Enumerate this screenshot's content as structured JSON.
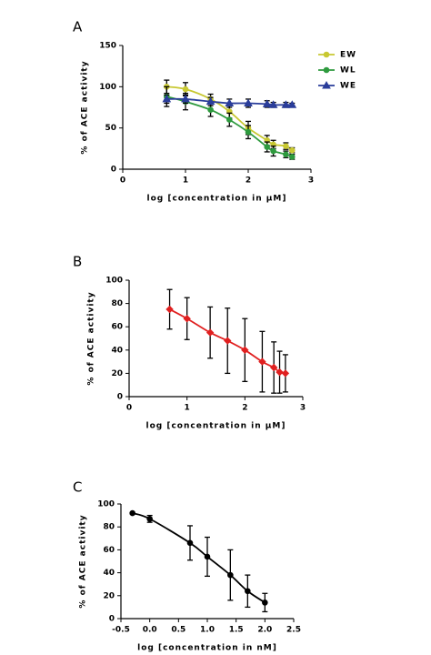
{
  "chart_data": [
    {
      "type": "line",
      "title": "A",
      "ylabel": "% of ACE activity",
      "xlabel": "log [concentration in μM]",
      "x": [
        0.7,
        1.0,
        1.4,
        1.7,
        2.0,
        2.3,
        2.4,
        2.6,
        2.7
      ],
      "series": [
        {
          "name": "EW",
          "color": "#c8c832",
          "marker": "circle",
          "values": [
            100,
            97,
            85,
            70,
            50,
            35,
            30,
            28,
            23
          ],
          "errors": [
            8,
            8,
            6,
            8,
            8,
            6,
            5,
            4,
            3
          ]
        },
        {
          "name": "WL",
          "color": "#2e9a3e",
          "marker": "circle",
          "values": [
            88,
            82,
            72,
            60,
            45,
            27,
            22,
            18,
            15
          ],
          "errors": [
            12,
            10,
            8,
            8,
            8,
            6,
            6,
            4,
            3
          ]
        },
        {
          "name": "WE",
          "color": "#2a3d9a",
          "marker": "triangle",
          "values": [
            85,
            85,
            82,
            80,
            80,
            79,
            78,
            78,
            78
          ],
          "errors": [
            5,
            5,
            5,
            5,
            5,
            4,
            3,
            3,
            2
          ]
        }
      ],
      "xlim": [
        0,
        3
      ],
      "xticks": [
        0,
        1,
        2,
        3
      ],
      "ylim": [
        0,
        150
      ],
      "yticks": [
        0,
        50,
        100,
        150
      ],
      "legend": "upper right"
    },
    {
      "type": "line",
      "title": "B",
      "ylabel": "% of ACE activity",
      "xlabel": "log [concentration in μM]",
      "x": [
        0.7,
        1.0,
        1.4,
        1.7,
        2.0,
        2.3,
        2.5,
        2.6,
        2.7
      ],
      "series": [
        {
          "color": "#e02020",
          "marker": "diamond",
          "values": [
            75,
            67,
            55,
            48,
            40,
            30,
            25,
            21,
            20
          ],
          "errors": [
            17,
            18,
            22,
            28,
            27,
            26,
            22,
            18,
            16
          ]
        }
      ],
      "xlim": [
        0,
        3
      ],
      "xticks": [
        0,
        1,
        2,
        3
      ],
      "ylim": [
        0,
        100
      ],
      "yticks": [
        0,
        20,
        40,
        60,
        80,
        100
      ]
    },
    {
      "type": "line",
      "title": "C",
      "ylabel": "% of ACE activity",
      "xlabel": "log [concentration in nM]",
      "x": [
        -0.3,
        0,
        0.7,
        1.0,
        1.4,
        1.7,
        2.0
      ],
      "series": [
        {
          "color": "#000000",
          "marker": "circle",
          "values": [
            92,
            87,
            66,
            54,
            38,
            24,
            14
          ],
          "errors": [
            null,
            3,
            15,
            17,
            22,
            14,
            8
          ]
        }
      ],
      "xlim": [
        -0.5,
        2.5
      ],
      "xticks": [
        -0.5,
        {
          "value": 0,
          "label": "0.0"
        },
        0.5,
        {
          "value": 1,
          "label": "1.0"
        },
        1.5,
        {
          "value": 2,
          "label": "2.0"
        },
        2.5
      ],
      "ylim": [
        0,
        100
      ],
      "yticks": [
        0,
        20,
        40,
        60,
        80,
        100
      ]
    }
  ]
}
